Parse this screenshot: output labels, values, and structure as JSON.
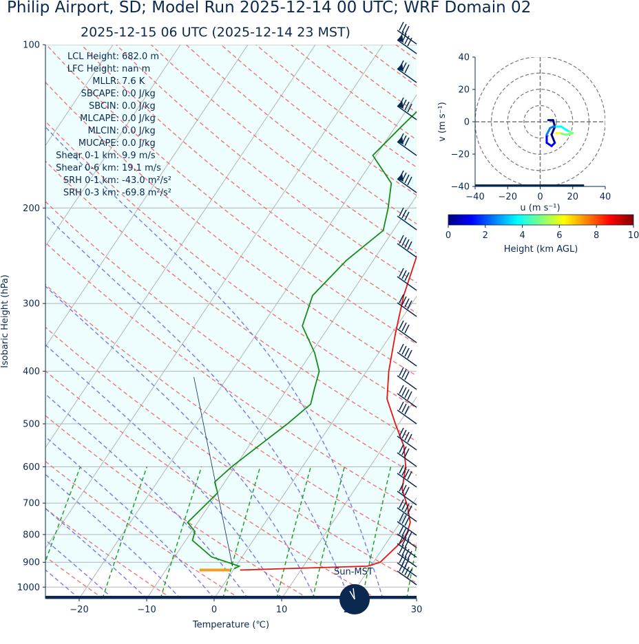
{
  "header": {
    "title": "Philip Airport, SD; Model Run 2025-12-14 00 UTC; WRF Domain 02",
    "subtitle": "2025-12-15 06 UTC  (2025-12-14 23 MST)"
  },
  "chart_data": [
    {
      "type": "line",
      "name": "skew-t",
      "xlabel": "Temperature (℃)",
      "ylabel": "Isobaric Height (hPa)",
      "xlim": [
        -25,
        30
      ],
      "ylim": [
        1050,
        100
      ],
      "y_scale": "log",
      "x_ticks": [
        -20,
        -10,
        0,
        10,
        20,
        30
      ],
      "x_tick_labels": [
        "−20",
        "−10",
        "0",
        "10",
        "20",
        "30"
      ],
      "y_ticks": [
        100,
        200,
        300,
        400,
        500,
        600,
        700,
        800,
        900,
        1000
      ],
      "grid": true,
      "series": [
        {
          "color": "#e8130f",
          "points": [
            [
              13.0,
              100
            ],
            [
              11.0,
              118
            ],
            [
              6.5,
              130
            ],
            [
              1.5,
              150
            ],
            [
              -0.5,
              180
            ],
            [
              -3.8,
              210
            ],
            [
              -4.0,
              245
            ],
            [
              -2.0,
              290
            ],
            [
              0.5,
              340
            ],
            [
              3.3,
              400
            ],
            [
              5.8,
              450
            ],
            [
              9.5,
              500
            ],
            [
              13.0,
              550
            ],
            [
              15.3,
              600
            ],
            [
              17.0,
              660
            ],
            [
              19.5,
              710
            ],
            [
              21.5,
              760
            ],
            [
              22.0,
              790
            ],
            [
              22.2,
              820
            ],
            [
              21.0,
              900
            ],
            [
              19.5,
              915
            ],
            [
              1.0,
              930
            ]
          ]
        },
        {
          "color": "#158c15",
          "points": [
            [
              -14.0,
              100
            ],
            [
              -17.0,
              120
            ],
            [
              -19.0,
              140
            ],
            [
              -20.5,
              160
            ],
            [
              -15.0,
              180
            ],
            [
              -13.0,
              200
            ],
            [
              -11.5,
              220
            ],
            [
              -14.0,
              250
            ],
            [
              -15.5,
              290
            ],
            [
              -14.0,
              330
            ],
            [
              -9.5,
              370
            ],
            [
              -7.0,
              400
            ],
            [
              -6.0,
              430
            ],
            [
              -5.0,
              460
            ],
            [
              -6.5,
              500
            ],
            [
              -9.0,
              560
            ],
            [
              -10.5,
              600
            ],
            [
              -11.5,
              640
            ],
            [
              -10.0,
              670
            ],
            [
              -10.5,
              700
            ],
            [
              -11.5,
              760
            ],
            [
              -9.5,
              790
            ],
            [
              -9.0,
              820
            ],
            [
              -4.5,
              880
            ],
            [
              0.5,
              915
            ],
            [
              0.0,
              925
            ]
          ]
        }
      ],
      "text_block": [
        {
          "label": "LCL Height:",
          "value": "682.0 m"
        },
        {
          "label": "LFC Height:",
          "value": "nan m"
        },
        {
          "label": "MLLR:",
          "value": "7.6 K"
        },
        {
          "label": "SBCAPE:",
          "value": "0.0 J/kg"
        },
        {
          "label": "SBCIN:",
          "value": "0.0 J/kg"
        },
        {
          "label": "MLCAPE:",
          "value": "0.0 J/kg"
        },
        {
          "label": "MLCIN:",
          "value": "0.0 J/kg"
        },
        {
          "label": "MUCAPE:",
          "value": "0.0 J/kg"
        },
        {
          "label": "Shear 0-1 km:",
          "value": "9.9 m/s"
        },
        {
          "label": "Shear 0-6 km:",
          "value": "19.1 m/s"
        },
        {
          "label": "SRH 0-1 km:",
          "value": "-43.0 m²/s²"
        },
        {
          "label": "SRH 0-3 km:",
          "value": "-69.8 m²/s²"
        }
      ],
      "clock_label": "Sun-MST",
      "barb_color": "#0a2850",
      "dry_adiabat_color": "#ee7777",
      "moist_adiabat_color": "#7777ee",
      "mixing_ratio_color": "#22a022",
      "fill_color": "#eefdfd"
    },
    {
      "type": "line",
      "name": "hodograph",
      "xlabel": "u (m s⁻¹)",
      "ylabel": "v (m s⁻¹)",
      "xlim": [
        -40,
        40
      ],
      "ylim": [
        -40,
        40
      ],
      "ticks": [
        -40,
        -20,
        0,
        20,
        40
      ],
      "tick_labels": [
        "−40",
        "−20",
        "0",
        "20",
        "40"
      ],
      "rings": [
        10,
        20,
        30,
        40
      ],
      "trace": [
        [
          5,
          1
        ],
        [
          8,
          1
        ],
        [
          9,
          -3
        ],
        [
          7,
          -8
        ],
        [
          9,
          -13
        ],
        [
          7,
          -15
        ],
        [
          4,
          -13
        ],
        [
          4,
          -8
        ],
        [
          6,
          -4
        ],
        [
          8,
          -3
        ],
        [
          10,
          -3
        ],
        [
          13,
          -3
        ],
        [
          16,
          -5
        ],
        [
          18,
          -6
        ],
        [
          20,
          -7
        ],
        [
          16,
          -8
        ],
        [
          12,
          -7
        ],
        [
          10,
          -7
        ]
      ],
      "colorbar": {
        "label": "Height (km AGL)",
        "range": [
          0,
          10
        ],
        "ticks": [
          0,
          2,
          4,
          6,
          8,
          10
        ],
        "colors": [
          "#00007f",
          "#0000ff",
          "#0080ff",
          "#00ffff",
          "#80ff80",
          "#ffff00",
          "#ff8000",
          "#ff0000",
          "#7f0000"
        ]
      }
    }
  ]
}
